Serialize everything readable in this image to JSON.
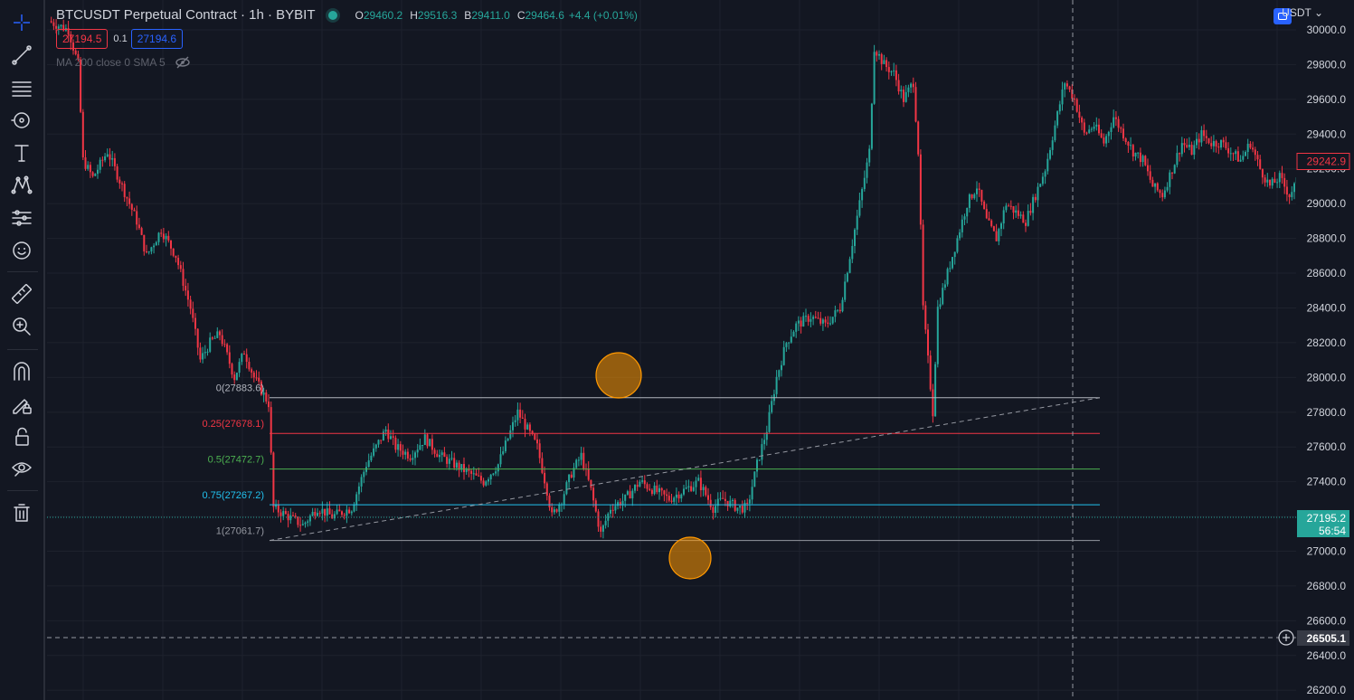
{
  "legend": {
    "symbol": "BTCUSDT Perpetual Contract · 1h · BYBIT",
    "o_label": "O",
    "o_value": "29460.2",
    "h_label": "H",
    "h_value": "29516.3",
    "l_label": "B",
    "l_value": "29411.0",
    "c_label": "C",
    "c_value": "29464.6",
    "change": "+4.4 (+0.01%)",
    "sell_price": "27194.5",
    "spread": "0.1",
    "buy_price": "27194.6",
    "indicator": "MA 200 close 0 SMA 5"
  },
  "currency": "USDT",
  "colors": {
    "bg": "#131722",
    "up": "#26a69a",
    "down": "#f23645",
    "grid": "#1e222d",
    "accent": "#2962ff"
  },
  "toolbar": [
    "crosshair-icon",
    "trend-line-icon",
    "horizontal-lines-icon",
    "brush-icon",
    "text-icon",
    "pattern-icon",
    "forecast-icon",
    "emoji-icon",
    "ruler-icon",
    "zoom-in-icon",
    "magnet-icon",
    "lock-pencil-icon",
    "lock-icon",
    "eye-icon",
    "trash-icon"
  ],
  "axis": {
    "ticks": [
      "30000.0",
      "29800.0",
      "29600.0",
      "29400.0",
      "29200.0",
      "29000.0",
      "28800.0",
      "28600.0",
      "28400.0",
      "28200.0",
      "28000.0",
      "27800.0",
      "27600.0",
      "27400.0",
      "27200.0",
      "27000.0",
      "26800.0",
      "26600.0",
      "26400.0",
      "26200.0"
    ],
    "current_price": "29242.9",
    "mark_price": "27195.2",
    "countdown": "56:54",
    "crosshair_price": "26505.1"
  },
  "fib": [
    {
      "label": "0(27883.6)",
      "price": 27883.6,
      "color": "#b2b5be"
    },
    {
      "label": "0.25(27678.1)",
      "price": 27678.1,
      "color": "#f23645"
    },
    {
      "label": "0.5(27472.7)",
      "price": 27472.7,
      "color": "#4caf50"
    },
    {
      "label": "0.75(27267.2)",
      "price": 27267.2,
      "color": "#22c1ee"
    },
    {
      "label": "1(27061.7)",
      "price": 27061.7,
      "color": "#9598a1"
    }
  ],
  "chart_data": {
    "type": "candlestick",
    "ylim": [
      26200,
      30000
    ],
    "anchors": [
      [
        0,
        30050
      ],
      [
        8,
        30000
      ],
      [
        12,
        29800
      ],
      [
        14,
        29250
      ],
      [
        18,
        29150
      ],
      [
        24,
        29300
      ],
      [
        30,
        29100
      ],
      [
        36,
        28900
      ],
      [
        40,
        28700
      ],
      [
        46,
        28850
      ],
      [
        52,
        28700
      ],
      [
        58,
        28400
      ],
      [
        62,
        28100
      ],
      [
        66,
        28200
      ],
      [
        70,
        28250
      ],
      [
        76,
        28000
      ],
      [
        80,
        28150
      ],
      [
        84,
        28000
      ],
      [
        88,
        27900
      ],
      [
        90,
        27850
      ],
      [
        92,
        27250
      ],
      [
        98,
        27200
      ],
      [
        104,
        27150
      ],
      [
        110,
        27250
      ],
      [
        116,
        27200
      ],
      [
        124,
        27250
      ],
      [
        130,
        27500
      ],
      [
        134,
        27600
      ],
      [
        138,
        27700
      ],
      [
        142,
        27600
      ],
      [
        148,
        27550
      ],
      [
        154,
        27650
      ],
      [
        160,
        27550
      ],
      [
        166,
        27500
      ],
      [
        172,
        27450
      ],
      [
        178,
        27400
      ],
      [
        184,
        27500
      ],
      [
        188,
        27650
      ],
      [
        192,
        27800
      ],
      [
        196,
        27700
      ],
      [
        200,
        27600
      ],
      [
        204,
        27350
      ],
      [
        206,
        27200
      ],
      [
        210,
        27300
      ],
      [
        214,
        27450
      ],
      [
        218,
        27550
      ],
      [
        222,
        27350
      ],
      [
        226,
        27100
      ],
      [
        230,
        27250
      ],
      [
        236,
        27300
      ],
      [
        242,
        27400
      ],
      [
        248,
        27350
      ],
      [
        254,
        27300
      ],
      [
        260,
        27350
      ],
      [
        266,
        27400
      ],
      [
        272,
        27250
      ],
      [
        276,
        27300
      ],
      [
        282,
        27250
      ],
      [
        286,
        27250
      ],
      [
        290,
        27500
      ],
      [
        294,
        27700
      ],
      [
        298,
        28000
      ],
      [
        302,
        28200
      ],
      [
        306,
        28300
      ],
      [
        312,
        28350
      ],
      [
        318,
        28300
      ],
      [
        324,
        28400
      ],
      [
        328,
        28700
      ],
      [
        332,
        29000
      ],
      [
        336,
        29300
      ],
      [
        338,
        29900
      ],
      [
        342,
        29800
      ],
      [
        346,
        29750
      ],
      [
        350,
        29600
      ],
      [
        354,
        29700
      ],
      [
        356,
        29300
      ],
      [
        358,
        28400
      ],
      [
        362,
        27800
      ],
      [
        364,
        28400
      ],
      [
        368,
        28600
      ],
      [
        372,
        28800
      ],
      [
        376,
        29000
      ],
      [
        380,
        29100
      ],
      [
        384,
        28900
      ],
      [
        388,
        28800
      ],
      [
        392,
        29000
      ],
      [
        396,
        28950
      ],
      [
        400,
        28900
      ],
      [
        404,
        29050
      ],
      [
        408,
        29200
      ],
      [
        412,
        29450
      ],
      [
        416,
        29700
      ],
      [
        420,
        29600
      ],
      [
        424,
        29400
      ],
      [
        428,
        29450
      ],
      [
        432,
        29350
      ],
      [
        436,
        29500
      ],
      [
        440,
        29400
      ],
      [
        444,
        29300
      ],
      [
        448,
        29250
      ],
      [
        452,
        29100
      ],
      [
        456,
        29050
      ],
      [
        460,
        29200
      ],
      [
        464,
        29350
      ],
      [
        468,
        29300
      ],
      [
        472,
        29400
      ],
      [
        476,
        29350
      ],
      [
        480,
        29350
      ],
      [
        484,
        29300
      ],
      [
        488,
        29250
      ],
      [
        492,
        29350
      ],
      [
        496,
        29200
      ],
      [
        500,
        29100
      ],
      [
        504,
        29150
      ],
      [
        508,
        29050
      ],
      [
        512,
        29150
      ],
      [
        516,
        29200
      ],
      [
        520,
        29250
      ]
    ]
  }
}
